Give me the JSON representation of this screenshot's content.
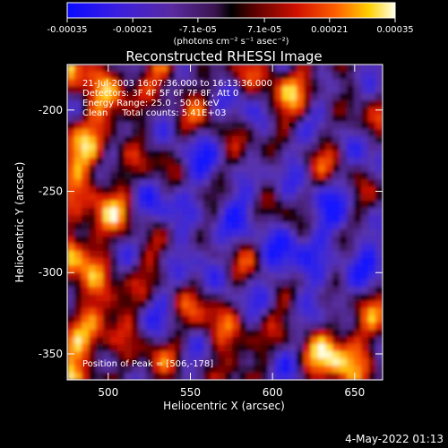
{
  "colorbar": {
    "tick_labels": [
      "-0.00035",
      "-0.00021",
      "-7.1e-05",
      "7.1e-05",
      "0.00021",
      "0.00035"
    ],
    "tick_values": [
      -0.00035,
      -0.00021,
      -7.1e-05,
      7.1e-05,
      0.00021,
      0.00035
    ],
    "units_label": "(photons cm⁻² s⁻¹ asec⁻²)",
    "range": [
      -0.00035,
      0.00035
    ]
  },
  "plot": {
    "title": "Reconstructed RHESSI Image",
    "info_lines": [
      "21-Jul-2003 16:07:36.000 to 16:13:36.000",
      "Detectors: 3F 4F 5F 6F 7F 8F, Att 0",
      "Energy Range: 25.0 - 50.0 keV",
      "Clean     Total counts: 5.41E+03"
    ],
    "peak_text": "Position of Peak = [506,-178]",
    "peak_position": [
      506,
      -178
    ],
    "xlabel": "Heliocentric X (arcsec)",
    "ylabel": "Heliocentric Y (arcsec)",
    "x_ticks": [
      "500",
      "550",
      "600",
      "650"
    ],
    "x_tick_values": [
      500,
      550,
      600,
      650
    ],
    "y_ticks": [
      "-200",
      "-250",
      "-300",
      "-350"
    ],
    "y_tick_values": [
      -200,
      -250,
      -300,
      -350
    ],
    "xlim": [
      475,
      667
    ],
    "ylim": [
      -366,
      -172
    ]
  },
  "footer": {
    "date": "4-May-2022 01:13"
  },
  "colors": {
    "background": "#000000",
    "foreground": "#ffffff"
  }
}
